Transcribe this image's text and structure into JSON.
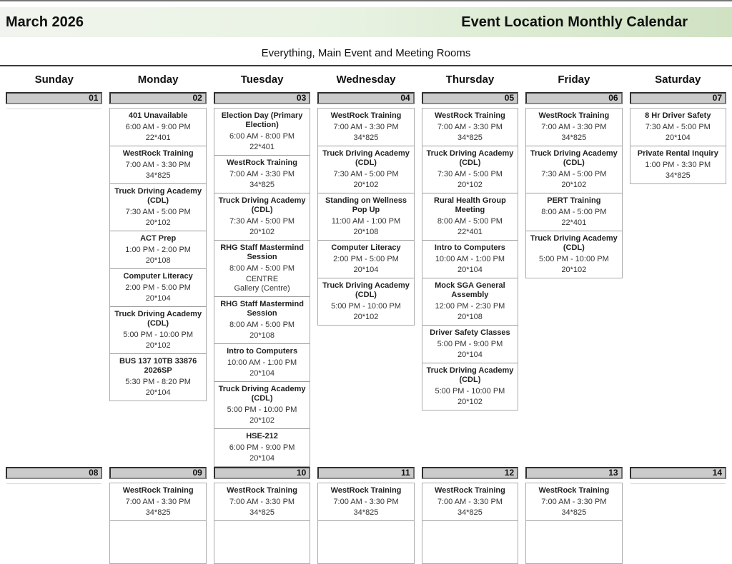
{
  "header": {
    "month_title": "March 2026",
    "report_title": "Event Location Monthly Calendar",
    "subtitle": "Everything, Main Event and Meeting Rooms"
  },
  "weekday_headers": [
    "Sunday",
    "Monday",
    "Tuesday",
    "Wednesday",
    "Thursday",
    "Friday",
    "Saturday"
  ],
  "colors": {
    "band_green": "#cfe2c2",
    "day_bar_fill": "#cbcbcb",
    "divider": "#3b3b3b",
    "event_border": "#ababab"
  },
  "weeks": [
    {
      "days": [
        {
          "num": "01",
          "events": []
        },
        {
          "num": "02",
          "events": [
            {
              "title": "401 Unavailable",
              "time": "6:00 AM - 9:00 PM",
              "rooms": [
                "22*401"
              ]
            },
            {
              "title": "WestRock Training",
              "time": "7:00 AM - 3:30 PM",
              "rooms": [
                "34*825"
              ]
            },
            {
              "title": "Truck Driving Academy (CDL)",
              "time": "7:30 AM - 5:00 PM",
              "rooms": [
                "20*102"
              ]
            },
            {
              "title": "ACT Prep",
              "time": "1:00 PM - 2:00 PM",
              "rooms": [
                "20*108"
              ]
            },
            {
              "title": "Computer Literacy",
              "time": "2:00 PM - 5:00 PM",
              "rooms": [
                "20*104"
              ]
            },
            {
              "title": "Truck Driving Academy (CDL)",
              "time": "5:00 PM - 10:00 PM",
              "rooms": [
                "20*102"
              ]
            },
            {
              "title": "BUS 137 10TB 33876 2026SP",
              "time": "5:30 PM - 8:20 PM",
              "rooms": [
                "20*104"
              ]
            }
          ]
        },
        {
          "num": "03",
          "events": [
            {
              "title": "Election Day (Primary Election)",
              "time": "6:00 AM - 8:00 PM",
              "rooms": [
                "22*401"
              ]
            },
            {
              "title": "WestRock Training",
              "time": "7:00 AM - 3:30 PM",
              "rooms": [
                "34*825"
              ]
            },
            {
              "title": "Truck Driving Academy (CDL)",
              "time": "7:30 AM - 5:00 PM",
              "rooms": [
                "20*102"
              ]
            },
            {
              "title": "RHG Staff Mastermind Session",
              "time": "8:00 AM - 5:00 PM",
              "rooms": [
                "CENTRE",
                "Gallery (Centre)"
              ]
            },
            {
              "title": "RHG Staff Mastermind Session",
              "time": "8:00 AM - 5:00 PM",
              "rooms": [
                "20*108"
              ]
            },
            {
              "title": "Intro to Computers",
              "time": "10:00 AM - 1:00 PM",
              "rooms": [
                "20*104"
              ]
            },
            {
              "title": "Truck Driving Academy (CDL)",
              "time": "5:00 PM - 10:00 PM",
              "rooms": [
                "20*102"
              ]
            },
            {
              "title": "HSE-212",
              "time": "6:00 PM - 9:00 PM",
              "rooms": [
                "20*104"
              ]
            }
          ]
        },
        {
          "num": "04",
          "events": [
            {
              "title": "WestRock Training",
              "time": "7:00 AM - 3:30 PM",
              "rooms": [
                "34*825"
              ]
            },
            {
              "title": "Truck Driving Academy (CDL)",
              "time": "7:30 AM - 5:00 PM",
              "rooms": [
                "20*102"
              ]
            },
            {
              "title": "Standing on Wellness Pop Up",
              "time": "11:00 AM - 1:00 PM",
              "rooms": [
                "20*108"
              ]
            },
            {
              "title": "Computer Literacy",
              "time": "2:00 PM - 5:00 PM",
              "rooms": [
                "20*104"
              ]
            },
            {
              "title": "Truck Driving Academy (CDL)",
              "time": "5:00 PM - 10:00 PM",
              "rooms": [
                "20*102"
              ]
            }
          ]
        },
        {
          "num": "05",
          "events": [
            {
              "title": "WestRock Training",
              "time": "7:00 AM - 3:30 PM",
              "rooms": [
                "34*825"
              ]
            },
            {
              "title": "Truck Driving Academy (CDL)",
              "time": "7:30 AM - 5:00 PM",
              "rooms": [
                "20*102"
              ]
            },
            {
              "title": "Rural Health Group Meeting",
              "time": "8:00 AM - 5:00 PM",
              "rooms": [
                "22*401"
              ]
            },
            {
              "title": "Intro to Computers",
              "time": "10:00 AM - 1:00 PM",
              "rooms": [
                "20*104"
              ]
            },
            {
              "title": "Mock SGA General Assembly",
              "time": "12:00 PM - 2:30 PM",
              "rooms": [
                "20*108"
              ]
            },
            {
              "title": "Driver Safety Classes",
              "time": "5:00 PM - 9:00 PM",
              "rooms": [
                "20*104"
              ]
            },
            {
              "title": "Truck Driving Academy (CDL)",
              "time": "5:00 PM - 10:00 PM",
              "rooms": [
                "20*102"
              ]
            }
          ]
        },
        {
          "num": "06",
          "events": [
            {
              "title": "WestRock Training",
              "time": "7:00 AM - 3:30 PM",
              "rooms": [
                "34*825"
              ]
            },
            {
              "title": "Truck Driving Academy (CDL)",
              "time": "7:30 AM - 5:00 PM",
              "rooms": [
                "20*102"
              ]
            },
            {
              "title": "PERT Training",
              "time": "8:00 AM - 5:00 PM",
              "rooms": [
                "22*401"
              ]
            },
            {
              "title": "Truck Driving Academy (CDL)",
              "time": "5:00 PM - 10:00 PM",
              "rooms": [
                "20*102"
              ]
            }
          ]
        },
        {
          "num": "07",
          "events": [
            {
              "title": "8 Hr Driver Safety",
              "time": "7:30 AM - 5:00 PM",
              "rooms": [
                "20*104"
              ]
            },
            {
              "title": "Private Rental Inquiry",
              "time": "1:00 PM - 3:30 PM",
              "rooms": [
                "34*825"
              ]
            }
          ]
        }
      ]
    },
    {
      "days": [
        {
          "num": "08",
          "events": []
        },
        {
          "num": "09",
          "more_clipped": true,
          "events": [
            {
              "title": "WestRock Training",
              "time": "7:00 AM - 3:30 PM",
              "rooms": [
                "34*825"
              ]
            }
          ]
        },
        {
          "num": "10",
          "more_clipped": true,
          "events": [
            {
              "title": "WestRock Training",
              "time": "7:00 AM - 3:30 PM",
              "rooms": [
                "34*825"
              ]
            }
          ]
        },
        {
          "num": "11",
          "more_clipped": true,
          "events": [
            {
              "title": "WestRock Training",
              "time": "7:00 AM - 3:30 PM",
              "rooms": [
                "34*825"
              ]
            }
          ]
        },
        {
          "num": "12",
          "more_clipped": true,
          "events": [
            {
              "title": "WestRock Training",
              "time": "7:00 AM - 3:30 PM",
              "rooms": [
                "34*825"
              ]
            }
          ]
        },
        {
          "num": "13",
          "more_clipped": true,
          "events": [
            {
              "title": "WestRock Training",
              "time": "7:00 AM - 3:30 PM",
              "rooms": [
                "34*825"
              ]
            }
          ]
        },
        {
          "num": "14",
          "events": []
        }
      ]
    }
  ]
}
